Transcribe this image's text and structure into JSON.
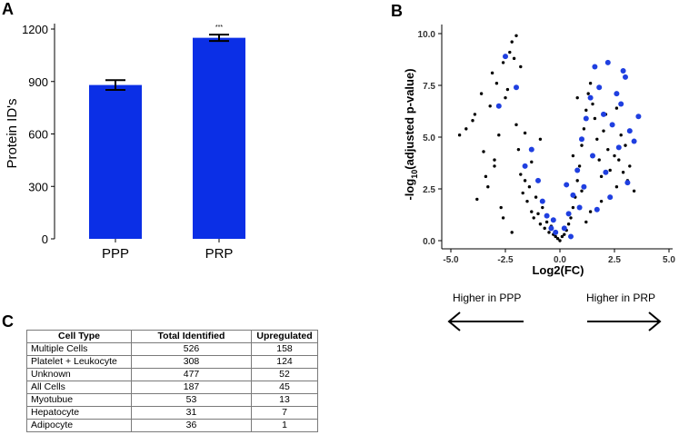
{
  "panel_labels": {
    "a": "A",
    "b": "B",
    "c": "C"
  },
  "colors": {
    "bar": "#0b2fe6",
    "blue_point": "#1f3fe0",
    "black_point": "#000000"
  },
  "chart_data": [
    {
      "type": "bar",
      "panel": "A",
      "categories": [
        "PPP",
        "PRP"
      ],
      "values": [
        880,
        1150
      ],
      "errors": [
        28,
        18
      ],
      "significance": [
        "",
        "***"
      ],
      "ylabel": "Protein ID's",
      "ylim": [
        0,
        1200
      ],
      "yticks": [
        "0",
        "300",
        "600",
        "900",
        "1200"
      ]
    },
    {
      "type": "scatter",
      "panel": "B",
      "xlabel": "Log2(FC)",
      "ylabel_prefix": "-log",
      "ylabel_sub": "10",
      "ylabel_suffix": "(adjusted p-value)",
      "xlim": [
        -5,
        5
      ],
      "ylim": [
        0,
        10
      ],
      "xticks": [
        "-5.0",
        "-2.5",
        "0.0",
        "2.5",
        "5.0"
      ],
      "yticks": [
        "0.0",
        "2.5",
        "5.0",
        "7.5",
        "10.0"
      ],
      "series": [
        {
          "name": "black",
          "points": [
            [
              -4.6,
              5.1
            ],
            [
              -4.3,
              5.4
            ],
            [
              -4.0,
              5.8
            ],
            [
              -3.9,
              6.1
            ],
            [
              -3.6,
              7.1
            ],
            [
              -3.5,
              4.3
            ],
            [
              -3.4,
              3.1
            ],
            [
              -3.3,
              2.6
            ],
            [
              -3.2,
              6.5
            ],
            [
              -3.1,
              8.1
            ],
            [
              -3.0,
              3.6
            ],
            [
              -2.9,
              7.6
            ],
            [
              -2.8,
              5.1
            ],
            [
              -2.7,
              1.6
            ],
            [
              -2.6,
              8.6
            ],
            [
              -2.5,
              6.9
            ],
            [
              -2.4,
              7.3
            ],
            [
              -2.3,
              9.1
            ],
            [
              -2.2,
              9.6
            ],
            [
              -2.1,
              8.8
            ],
            [
              -2.0,
              5.6
            ],
            [
              -1.9,
              4.4
            ],
            [
              -1.8,
              3.2
            ],
            [
              -1.7,
              2.3
            ],
            [
              -1.6,
              2.9
            ],
            [
              -1.5,
              1.9
            ],
            [
              -1.4,
              2.6
            ],
            [
              -1.3,
              1.4
            ],
            [
              -1.2,
              1.1
            ],
            [
              -1.1,
              2.1
            ],
            [
              -1.0,
              1.3
            ],
            [
              -0.9,
              0.8
            ],
            [
              -0.8,
              1.6
            ],
            [
              -0.7,
              0.6
            ],
            [
              -0.6,
              0.9
            ],
            [
              -0.5,
              0.4
            ],
            [
              -0.4,
              0.7
            ],
            [
              -0.3,
              0.3
            ],
            [
              -0.2,
              0.2
            ],
            [
              -0.1,
              0.1
            ],
            [
              0.0,
              0.0
            ],
            [
              0.1,
              0.2
            ],
            [
              0.2,
              0.3
            ],
            [
              0.3,
              0.5
            ],
            [
              0.4,
              0.8
            ],
            [
              0.5,
              1.1
            ],
            [
              0.6,
              1.6
            ],
            [
              0.7,
              2.1
            ],
            [
              0.8,
              2.9
            ],
            [
              0.9,
              3.6
            ],
            [
              1.0,
              4.6
            ],
            [
              1.1,
              5.4
            ],
            [
              1.2,
              6.3
            ],
            [
              1.3,
              7.1
            ],
            [
              1.4,
              7.6
            ],
            [
              1.5,
              6.6
            ],
            [
              1.6,
              5.9
            ],
            [
              1.7,
              4.9
            ],
            [
              1.8,
              3.9
            ],
            [
              1.9,
              3.1
            ],
            [
              2.0,
              5.3
            ],
            [
              2.1,
              6.1
            ],
            [
              2.2,
              4.4
            ],
            [
              2.3,
              3.4
            ],
            [
              2.4,
              5.6
            ],
            [
              2.5,
              4.1
            ],
            [
              2.6,
              2.6
            ],
            [
              2.7,
              3.9
            ],
            [
              2.8,
              5.1
            ],
            [
              2.9,
              3.3
            ],
            [
              3.0,
              4.6
            ],
            [
              3.1,
              2.9
            ],
            [
              3.2,
              3.6
            ],
            [
              3.4,
              2.4
            ],
            [
              -2.0,
              9.9
            ],
            [
              -2.2,
              0.4
            ],
            [
              -3.0,
              3.9
            ],
            [
              -1.6,
              5.2
            ],
            [
              -1.3,
              3.8
            ],
            [
              -0.9,
              4.9
            ],
            [
              0.6,
              4.1
            ],
            [
              1.0,
              2.4
            ],
            [
              1.4,
              1.4
            ],
            [
              1.9,
              1.9
            ],
            [
              2.6,
              6.4
            ],
            [
              0.8,
              6.9
            ],
            [
              1.2,
              0.9
            ],
            [
              -1.8,
              8.4
            ],
            [
              -2.6,
              1.1
            ],
            [
              -3.8,
              2.0
            ]
          ]
        },
        {
          "name": "blue",
          "points": [
            [
              -2.5,
              8.9
            ],
            [
              -2.0,
              7.4
            ],
            [
              -1.3,
              4.4
            ],
            [
              -1.0,
              2.9
            ],
            [
              -0.8,
              1.9
            ],
            [
              -0.6,
              1.2
            ],
            [
              -0.4,
              0.6
            ],
            [
              -0.2,
              0.4
            ],
            [
              0.2,
              0.6
            ],
            [
              0.4,
              1.3
            ],
            [
              0.6,
              2.2
            ],
            [
              0.8,
              3.4
            ],
            [
              1.0,
              4.9
            ],
            [
              1.2,
              5.9
            ],
            [
              1.4,
              6.9
            ],
            [
              1.6,
              8.4
            ],
            [
              1.8,
              7.4
            ],
            [
              2.0,
              6.1
            ],
            [
              2.2,
              8.6
            ],
            [
              2.4,
              5.6
            ],
            [
              2.6,
              7.1
            ],
            [
              2.8,
              6.6
            ],
            [
              3.0,
              7.9
            ],
            [
              3.2,
              5.3
            ],
            [
              3.4,
              4.8
            ],
            [
              3.6,
              6.0
            ],
            [
              2.9,
              8.2
            ],
            [
              1.5,
              4.1
            ],
            [
              2.1,
              3.3
            ],
            [
              1.1,
              2.6
            ],
            [
              0.9,
              1.6
            ],
            [
              -2.8,
              6.5
            ],
            [
              -1.6,
              3.6
            ],
            [
              -0.3,
              1.0
            ],
            [
              0.5,
              0.2
            ],
            [
              2.3,
              2.1
            ],
            [
              1.7,
              1.5
            ],
            [
              2.7,
              4.5
            ],
            [
              3.1,
              2.8
            ],
            [
              0.3,
              2.7
            ]
          ]
        }
      ]
    }
  ],
  "arrows": {
    "left_label": "Higher in PPP",
    "right_label": "Higher in PRP"
  },
  "table": {
    "headers": [
      "Cell Type",
      "Total Identified",
      "Upregulated"
    ],
    "rows": [
      [
        "Multiple Cells",
        "526",
        "158"
      ],
      [
        "Platelet + Leukocyte",
        "308",
        "124"
      ],
      [
        "Unknown",
        "477",
        "52"
      ],
      [
        "All Cells",
        "187",
        "45"
      ],
      [
        "Myotubue",
        "53",
        "13"
      ],
      [
        "Hepatocyte",
        "31",
        "7"
      ],
      [
        "Adipocyte",
        "36",
        "1"
      ]
    ]
  }
}
